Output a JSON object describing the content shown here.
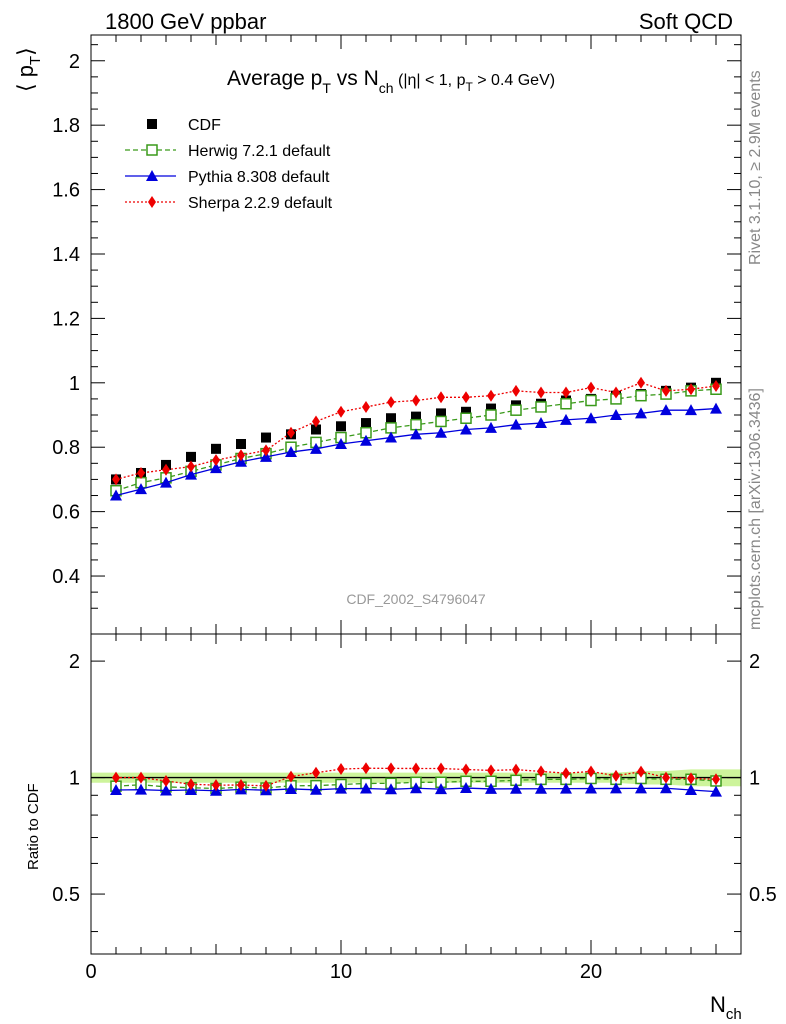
{
  "header": {
    "left": "1800 GeV ppbar",
    "right": "Soft QCD"
  },
  "side_labels": {
    "rivet": "Rivet 3.1.10, ≥ 2.9M events",
    "mcplots": "mcplots.cern.ch [arXiv:1306.3436]"
  },
  "chart_data": {
    "type": "line",
    "title": "Average p_T vs N_ch (|η| < 1, p_T > 0.4 GeV)",
    "title_parts": {
      "main": "Average p",
      "main_sub": "T",
      "vs": " vs N",
      "vs_sub": "ch",
      "cut1": " (|η| < 1, p",
      "cut_sub": "T",
      "cut2": " > 0.4 GeV)"
    },
    "ylabel": "⟨ p_T ⟩",
    "ylabel_parts": {
      "left": "⟨ p",
      "sub": "T",
      "right": "⟩"
    },
    "xlabel": "N_ch",
    "xlabel_parts": {
      "main": "N",
      "sub": "ch"
    },
    "watermark": "CDF_2002_S4796047",
    "legend_position": "top-left",
    "xlim": [
      0,
      26
    ],
    "ylim": [
      0.22,
      2.08
    ],
    "x_ticks": [
      "0",
      "10",
      "20"
    ],
    "y_ticks": [
      "0.4",
      "0.6",
      "0.8",
      "1",
      "1.2",
      "1.4",
      "1.6",
      "1.8",
      "2"
    ],
    "x": [
      1,
      2,
      3,
      4,
      5,
      6,
      7,
      8,
      9,
      10,
      11,
      12,
      13,
      14,
      15,
      16,
      17,
      18,
      19,
      20,
      21,
      22,
      23,
      24,
      25
    ],
    "series": [
      {
        "name": "CDF",
        "color": "#000000",
        "marker": "square",
        "line": "none",
        "values": [
          0.7,
          0.72,
          0.745,
          0.77,
          0.795,
          0.81,
          0.83,
          0.84,
          0.855,
          0.865,
          0.875,
          0.89,
          0.895,
          0.905,
          0.91,
          0.92,
          0.93,
          0.935,
          0.945,
          0.95,
          0.96,
          0.965,
          0.975,
          0.985,
          1.0
        ]
      },
      {
        "name": "Herwig 7.2.1 default",
        "color": "#3a9a1a",
        "marker": "open-square",
        "line": "dashed",
        "values": [
          0.665,
          0.69,
          0.705,
          0.725,
          0.745,
          0.765,
          0.78,
          0.8,
          0.815,
          0.83,
          0.845,
          0.86,
          0.87,
          0.88,
          0.89,
          0.9,
          0.915,
          0.925,
          0.935,
          0.945,
          0.95,
          0.96,
          0.965,
          0.975,
          0.98
        ]
      },
      {
        "name": "Pythia 8.308 default",
        "color": "#0000dd",
        "marker": "triangle",
        "line": "solid",
        "values": [
          0.65,
          0.67,
          0.69,
          0.715,
          0.735,
          0.755,
          0.77,
          0.785,
          0.795,
          0.81,
          0.82,
          0.83,
          0.84,
          0.845,
          0.855,
          0.86,
          0.87,
          0.875,
          0.885,
          0.89,
          0.9,
          0.905,
          0.915,
          0.915,
          0.92
        ]
      },
      {
        "name": "Sherpa 2.2.9 default",
        "color": "#ee0000",
        "marker": "diamond",
        "line": "dotted",
        "values": [
          0.7,
          0.72,
          0.73,
          0.74,
          0.76,
          0.775,
          0.79,
          0.845,
          0.88,
          0.91,
          0.925,
          0.94,
          0.945,
          0.955,
          0.955,
          0.96,
          0.975,
          0.97,
          0.97,
          0.985,
          0.97,
          1.0,
          0.975,
          0.98,
          0.99
        ]
      }
    ],
    "ratio_panel": {
      "ylabel": "Ratio to CDF",
      "ylim": [
        0.35,
        2.35
      ],
      "y_ticks": [
        "0.5",
        "1",
        "2"
      ],
      "reference_band": {
        "color": "#b8f070",
        "values": [
          0.03,
          0.03,
          0.03,
          0.03,
          0.03,
          0.03,
          0.03,
          0.03,
          0.03,
          0.03,
          0.03,
          0.03,
          0.03,
          0.03,
          0.03,
          0.03,
          0.03,
          0.03,
          0.03,
          0.03,
          0.03,
          0.04,
          0.04,
          0.05,
          0.05
        ]
      }
    }
  }
}
